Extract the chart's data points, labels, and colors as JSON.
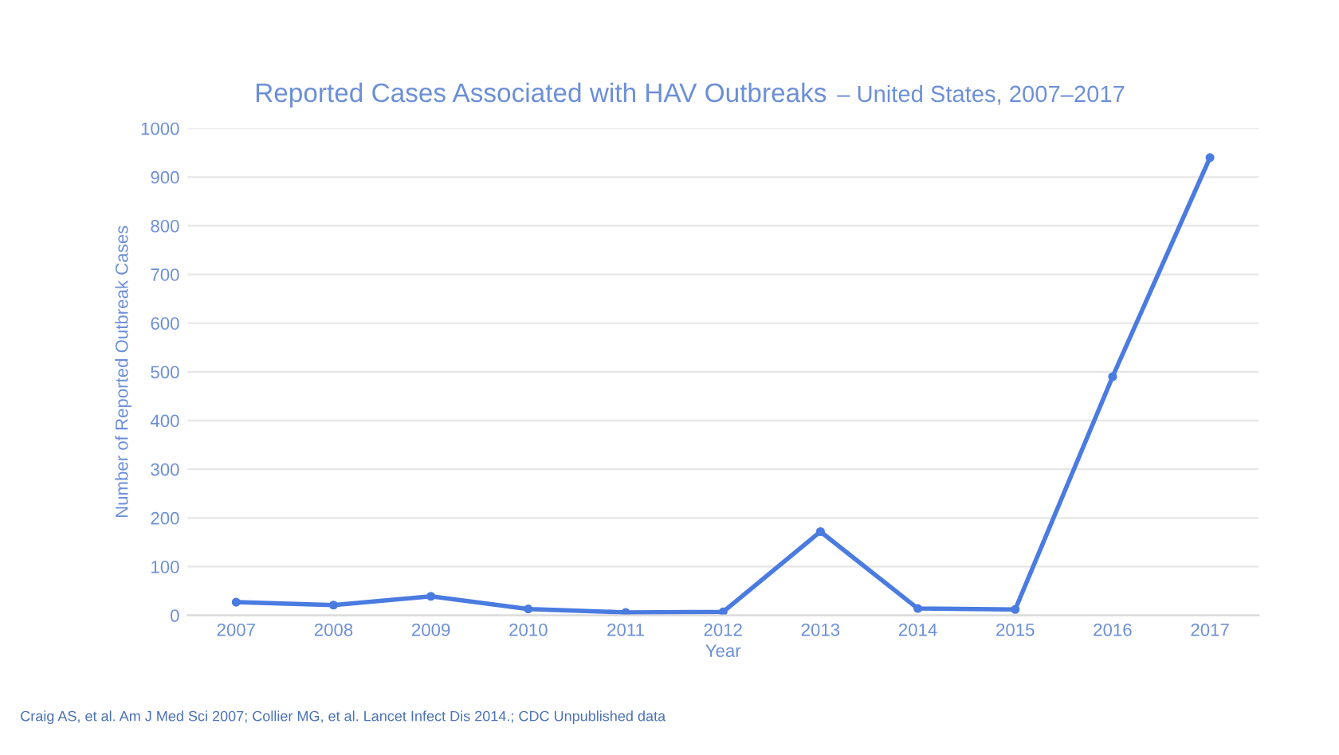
{
  "chart_data": {
    "type": "line",
    "title": "Reported Cases Associated with HAV Outbreaks",
    "subtitle": "– United States, 2007–2017",
    "xlabel": "Year",
    "ylabel": "Number of Reported Outbreak Cases",
    "categories": [
      "2007",
      "2008",
      "2009",
      "2010",
      "2011",
      "2012",
      "2013",
      "2014",
      "2015",
      "2016",
      "2017"
    ],
    "series": [
      {
        "color": "#4a7be0",
        "values": [
          27,
          21,
          39,
          13,
          6,
          7,
          172,
          14,
          12,
          490,
          940
        ]
      }
    ],
    "ylim": [
      0,
      1000
    ],
    "yticks": [
      0,
      100,
      200,
      300,
      400,
      500,
      600,
      700,
      800,
      900,
      1000
    ],
    "grid": "y",
    "marker": "circle",
    "line_style": "solid",
    "annotations": [
      "Craig AS, et al. Am J Med Sci 2007; Collier MG, et al. Lancet Infect Dis 2014.; CDC Unpublished data"
    ]
  }
}
